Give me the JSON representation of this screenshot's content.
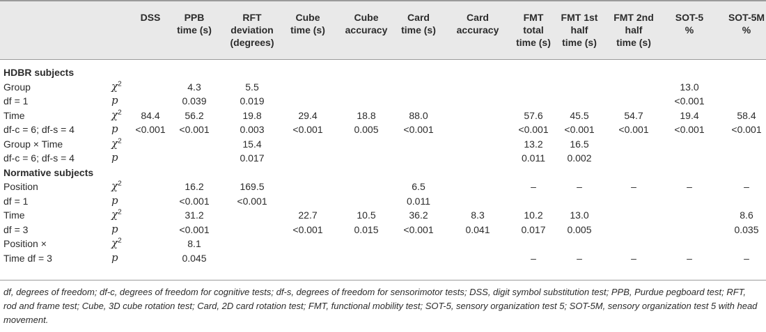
{
  "headers": [
    "DSS",
    "PPB\ntime (s)",
    "RFT\ndeviation\n(degrees)",
    "Cube\ntime (s)",
    "Cube\naccuracy",
    "Card\ntime (s)",
    "Card\naccuracy",
    "FMT\ntotal\ntime (s)",
    "FMT 1st\nhalf\ntime (s)",
    "FMT 2nd\nhalf\ntime (s)",
    "SOT-5\n%",
    "SOT-5M\n%"
  ],
  "sections": [
    {
      "title": "HDBR subjects",
      "rows": [
        {
          "label": "Group",
          "stat": "chi2",
          "values": [
            "",
            "4.3",
            "5.5",
            "",
            "",
            "",
            "",
            "",
            "",
            "",
            "13.0",
            ""
          ]
        },
        {
          "label": "df = 1",
          "stat": "p",
          "values": [
            "",
            "0.039",
            "0.019",
            "",
            "",
            "",
            "",
            "",
            "",
            "",
            "<0.001",
            ""
          ]
        },
        {
          "label": "Time",
          "stat": "chi2",
          "values": [
            "84.4",
            "56.2",
            "19.8",
            "29.4",
            "18.8",
            "88.0",
            "",
            "57.6",
            "45.5",
            "54.7",
            "19.4",
            "58.4"
          ]
        },
        {
          "label": "df-c = 6; df-s = 4",
          "stat": "p",
          "values": [
            "<0.001",
            "<0.001",
            "0.003",
            "<0.001",
            "0.005",
            "<0.001",
            "",
            "<0.001",
            "<0.001",
            "<0.001",
            "<0.001",
            "<0.001"
          ]
        },
        {
          "label": "Group × Time",
          "stat": "chi2",
          "values": [
            "",
            "",
            "15.4",
            "",
            "",
            "",
            "",
            "13.2",
            "16.5",
            "",
            "",
            ""
          ]
        },
        {
          "label": "df-c = 6; df-s = 4",
          "stat": "p",
          "values": [
            "",
            "",
            "0.017",
            "",
            "",
            "",
            "",
            "0.011",
            "0.002",
            "",
            "",
            ""
          ]
        }
      ]
    },
    {
      "title": "Normative subjects",
      "rows": [
        {
          "label": "Position",
          "stat": "chi2",
          "values": [
            "",
            "16.2",
            "169.5",
            "",
            "",
            "6.5",
            "",
            "–",
            "–",
            "–",
            "–",
            "–"
          ]
        },
        {
          "label": "df = 1",
          "stat": "p",
          "values": [
            "",
            "<0.001",
            "<0.001",
            "",
            "",
            "0.011",
            "",
            "",
            "",
            "",
            "",
            ""
          ]
        },
        {
          "label": "Time",
          "stat": "chi2",
          "values": [
            "",
            "31.2",
            "",
            "22.7",
            "10.5",
            "36.2",
            "8.3",
            "10.2",
            "13.0",
            "",
            "",
            "8.6"
          ]
        },
        {
          "label": "df = 3",
          "stat": "p",
          "values": [
            "",
            "<0.001",
            "",
            "<0.001",
            "0.015",
            "<0.001",
            "0.041",
            "0.017",
            "0.005",
            "",
            "",
            "0.035"
          ]
        },
        {
          "label": "Position ×",
          "stat": "chi2",
          "values": [
            "",
            "8.1",
            "",
            "",
            "",
            "",
            "",
            "",
            "",
            "",
            "",
            ""
          ]
        },
        {
          "label": "Time df = 3",
          "stat": "p",
          "values": [
            "",
            "0.045",
            "",
            "",
            "",
            "",
            "",
            "–",
            "–",
            "–",
            "–",
            "–"
          ]
        }
      ]
    }
  ],
  "stat_symbols": {
    "chi2": "χ",
    "chi2_sup": "2",
    "p": "p"
  },
  "footnote": "df, degrees of freedom; df-c, degrees of freedom for cognitive tests; df-s, degrees of freedom for sensorimotor tests; DSS, digit symbol substitution test; PPB, Purdue pegboard test; RFT, rod and frame test; Cube, 3D cube rotation test; Card, 2D card rotation test; FMT, functional mobility test; SOT-5, sensory organization test 5; SOT-5M, sensory organization test 5 with head movement."
}
